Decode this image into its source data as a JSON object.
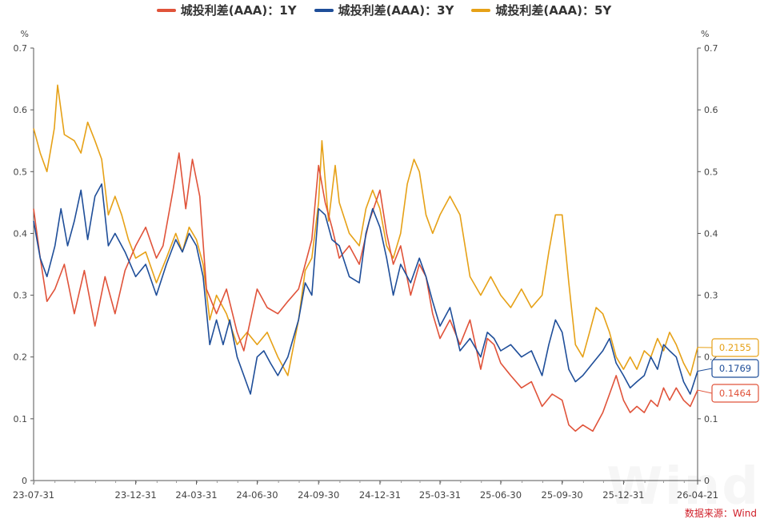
{
  "legend": [
    {
      "name": "城投利差(AAA)：1Y",
      "color": "#e0533a"
    },
    {
      "name": "城投利差(AAA)：3Y",
      "color": "#1f4e99"
    },
    {
      "name": "城投利差(AAA)：5Y",
      "color": "#e6a117"
    }
  ],
  "source": "数据来源：Wind",
  "watermark": "Wind",
  "chart_data": {
    "type": "line",
    "y_unit_left": "%",
    "y_unit_right": "%",
    "ylim": [
      0,
      0.7
    ],
    "yticks": [
      "0",
      "0.1",
      "0.2",
      "0.3",
      "0.4",
      "0.5",
      "0.6",
      "0.7"
    ],
    "x_range": [
      "2023-07-31",
      "2026-04-21"
    ],
    "xticks": [
      "23-07-31",
      "23-12-31",
      "24-03-31",
      "24-06-30",
      "24-09-30",
      "24-12-31",
      "25-03-31",
      "25-06-30",
      "25-09-30",
      "25-12-31",
      "26-04-21"
    ],
    "end_labels": [
      "0.2155",
      "0.1769",
      "0.1464"
    ],
    "series": [
      {
        "name": "城投利差(AAA)：1Y",
        "color": "#e0533a",
        "points": [
          [
            "2023-07-31",
            0.44
          ],
          [
            "2023-08-10",
            0.36
          ],
          [
            "2023-08-20",
            0.29
          ],
          [
            "2023-09-01",
            0.31
          ],
          [
            "2023-09-15",
            0.35
          ],
          [
            "2023-09-30",
            0.27
          ],
          [
            "2023-10-15",
            0.34
          ],
          [
            "2023-10-31",
            0.25
          ],
          [
            "2023-11-15",
            0.33
          ],
          [
            "2023-11-30",
            0.27
          ],
          [
            "2023-12-15",
            0.34
          ],
          [
            "2023-12-31",
            0.38
          ],
          [
            "2024-01-15",
            0.41
          ],
          [
            "2024-01-31",
            0.36
          ],
          [
            "2024-02-10",
            0.38
          ],
          [
            "2024-02-25",
            0.47
          ],
          [
            "2024-03-05",
            0.53
          ],
          [
            "2024-03-15",
            0.44
          ],
          [
            "2024-03-25",
            0.52
          ],
          [
            "2024-04-05",
            0.46
          ],
          [
            "2024-04-15",
            0.31
          ],
          [
            "2024-04-30",
            0.27
          ],
          [
            "2024-05-15",
            0.31
          ],
          [
            "2024-05-31",
            0.24
          ],
          [
            "2024-06-10",
            0.21
          ],
          [
            "2024-06-20",
            0.26
          ],
          [
            "2024-06-30",
            0.31
          ],
          [
            "2024-07-15",
            0.28
          ],
          [
            "2024-07-31",
            0.27
          ],
          [
            "2024-08-15",
            0.29
          ],
          [
            "2024-08-31",
            0.31
          ],
          [
            "2024-09-10",
            0.35
          ],
          [
            "2024-09-20",
            0.39
          ],
          [
            "2024-09-30",
            0.51
          ],
          [
            "2024-10-10",
            0.45
          ],
          [
            "2024-10-20",
            0.41
          ],
          [
            "2024-10-31",
            0.36
          ],
          [
            "2024-11-15",
            0.38
          ],
          [
            "2024-11-30",
            0.35
          ],
          [
            "2024-12-15",
            0.42
          ],
          [
            "2024-12-31",
            0.47
          ],
          [
            "2025-01-10",
            0.4
          ],
          [
            "2025-01-20",
            0.35
          ],
          [
            "2025-01-31",
            0.38
          ],
          [
            "2025-02-15",
            0.3
          ],
          [
            "2025-02-28",
            0.35
          ],
          [
            "2025-03-10",
            0.33
          ],
          [
            "2025-03-20",
            0.27
          ],
          [
            "2025-03-31",
            0.23
          ],
          [
            "2025-04-15",
            0.26
          ],
          [
            "2025-04-30",
            0.22
          ],
          [
            "2025-05-15",
            0.26
          ],
          [
            "2025-05-31",
            0.18
          ],
          [
            "2025-06-10",
            0.23
          ],
          [
            "2025-06-20",
            0.22
          ],
          [
            "2025-06-30",
            0.19
          ],
          [
            "2025-07-15",
            0.17
          ],
          [
            "2025-07-31",
            0.15
          ],
          [
            "2025-08-15",
            0.16
          ],
          [
            "2025-08-31",
            0.12
          ],
          [
            "2025-09-15",
            0.14
          ],
          [
            "2025-09-30",
            0.13
          ],
          [
            "2025-10-10",
            0.09
          ],
          [
            "2025-10-20",
            0.08
          ],
          [
            "2025-10-31",
            0.09
          ],
          [
            "2025-11-15",
            0.08
          ],
          [
            "2025-11-30",
            0.11
          ],
          [
            "2025-12-10",
            0.14
          ],
          [
            "2025-12-20",
            0.17
          ],
          [
            "2025-12-31",
            0.13
          ],
          [
            "2026-01-10",
            0.11
          ],
          [
            "2026-01-20",
            0.12
          ],
          [
            "2026-01-31",
            0.11
          ],
          [
            "2026-02-10",
            0.13
          ],
          [
            "2026-02-20",
            0.12
          ],
          [
            "2026-03-01",
            0.15
          ],
          [
            "2026-03-10",
            0.13
          ],
          [
            "2026-03-20",
            0.15
          ],
          [
            "2026-03-31",
            0.13
          ],
          [
            "2026-04-10",
            0.12
          ],
          [
            "2026-04-21",
            0.1464
          ]
        ]
      },
      {
        "name": "城投利差(AAA)：3Y",
        "color": "#1f4e99",
        "points": [
          [
            "2023-07-31",
            0.42
          ],
          [
            "2023-08-10",
            0.36
          ],
          [
            "2023-08-20",
            0.33
          ],
          [
            "2023-09-01",
            0.38
          ],
          [
            "2023-09-10",
            0.44
          ],
          [
            "2023-09-20",
            0.38
          ],
          [
            "2023-09-30",
            0.42
          ],
          [
            "2023-10-10",
            0.47
          ],
          [
            "2023-10-20",
            0.39
          ],
          [
            "2023-10-31",
            0.46
          ],
          [
            "2023-11-10",
            0.48
          ],
          [
            "2023-11-20",
            0.38
          ],
          [
            "2023-11-30",
            0.4
          ],
          [
            "2023-12-15",
            0.37
          ],
          [
            "2023-12-31",
            0.33
          ],
          [
            "2024-01-15",
            0.35
          ],
          [
            "2024-01-31",
            0.3
          ],
          [
            "2024-02-15",
            0.35
          ],
          [
            "2024-02-29",
            0.39
          ],
          [
            "2024-03-10",
            0.37
          ],
          [
            "2024-03-20",
            0.4
          ],
          [
            "2024-03-31",
            0.38
          ],
          [
            "2024-04-10",
            0.33
          ],
          [
            "2024-04-20",
            0.22
          ],
          [
            "2024-04-30",
            0.26
          ],
          [
            "2024-05-10",
            0.22
          ],
          [
            "2024-05-20",
            0.26
          ],
          [
            "2024-05-31",
            0.2
          ],
          [
            "2024-06-10",
            0.17
          ],
          [
            "2024-06-20",
            0.14
          ],
          [
            "2024-06-30",
            0.2
          ],
          [
            "2024-07-10",
            0.21
          ],
          [
            "2024-07-20",
            0.19
          ],
          [
            "2024-07-31",
            0.17
          ],
          [
            "2024-08-15",
            0.2
          ],
          [
            "2024-08-31",
            0.26
          ],
          [
            "2024-09-10",
            0.32
          ],
          [
            "2024-09-20",
            0.3
          ],
          [
            "2024-09-30",
            0.44
          ],
          [
            "2024-10-10",
            0.43
          ],
          [
            "2024-10-20",
            0.39
          ],
          [
            "2024-10-31",
            0.38
          ],
          [
            "2024-11-15",
            0.33
          ],
          [
            "2024-11-30",
            0.32
          ],
          [
            "2024-12-10",
            0.4
          ],
          [
            "2024-12-20",
            0.44
          ],
          [
            "2024-12-31",
            0.41
          ],
          [
            "2025-01-10",
            0.36
          ],
          [
            "2025-01-20",
            0.3
          ],
          [
            "2025-01-31",
            0.35
          ],
          [
            "2025-02-15",
            0.32
          ],
          [
            "2025-02-28",
            0.36
          ],
          [
            "2025-03-10",
            0.33
          ],
          [
            "2025-03-20",
            0.29
          ],
          [
            "2025-03-31",
            0.25
          ],
          [
            "2025-04-15",
            0.28
          ],
          [
            "2025-04-30",
            0.21
          ],
          [
            "2025-05-15",
            0.23
          ],
          [
            "2025-05-31",
            0.2
          ],
          [
            "2025-06-10",
            0.24
          ],
          [
            "2025-06-20",
            0.23
          ],
          [
            "2025-06-30",
            0.21
          ],
          [
            "2025-07-15",
            0.22
          ],
          [
            "2025-07-31",
            0.2
          ],
          [
            "2025-08-15",
            0.21
          ],
          [
            "2025-08-31",
            0.17
          ],
          [
            "2025-09-10",
            0.22
          ],
          [
            "2025-09-20",
            0.26
          ],
          [
            "2025-09-30",
            0.24
          ],
          [
            "2025-10-10",
            0.18
          ],
          [
            "2025-10-20",
            0.16
          ],
          [
            "2025-10-31",
            0.17
          ],
          [
            "2025-11-15",
            0.19
          ],
          [
            "2025-11-30",
            0.21
          ],
          [
            "2025-12-10",
            0.23
          ],
          [
            "2025-12-20",
            0.19
          ],
          [
            "2025-12-31",
            0.17
          ],
          [
            "2026-01-10",
            0.15
          ],
          [
            "2026-01-20",
            0.16
          ],
          [
            "2026-01-31",
            0.17
          ],
          [
            "2026-02-10",
            0.2
          ],
          [
            "2026-02-20",
            0.18
          ],
          [
            "2026-03-01",
            0.22
          ],
          [
            "2026-03-10",
            0.21
          ],
          [
            "2026-03-20",
            0.2
          ],
          [
            "2026-03-31",
            0.16
          ],
          [
            "2026-04-10",
            0.14
          ],
          [
            "2026-04-21",
            0.1769
          ]
        ]
      },
      {
        "name": "城投利差(AAA)：5Y",
        "color": "#e6a117",
        "points": [
          [
            "2023-07-31",
            0.57
          ],
          [
            "2023-08-10",
            0.53
          ],
          [
            "2023-08-20",
            0.5
          ],
          [
            "2023-08-31",
            0.57
          ],
          [
            "2023-09-05",
            0.64
          ],
          [
            "2023-09-15",
            0.56
          ],
          [
            "2023-09-30",
            0.55
          ],
          [
            "2023-10-10",
            0.53
          ],
          [
            "2023-10-20",
            0.58
          ],
          [
            "2023-10-31",
            0.55
          ],
          [
            "2023-11-10",
            0.52
          ],
          [
            "2023-11-20",
            0.43
          ],
          [
            "2023-11-30",
            0.46
          ],
          [
            "2023-12-10",
            0.43
          ],
          [
            "2023-12-20",
            0.39
          ],
          [
            "2023-12-31",
            0.36
          ],
          [
            "2024-01-15",
            0.37
          ],
          [
            "2024-01-31",
            0.32
          ],
          [
            "2024-02-15",
            0.36
          ],
          [
            "2024-02-29",
            0.4
          ],
          [
            "2024-03-10",
            0.37
          ],
          [
            "2024-03-20",
            0.41
          ],
          [
            "2024-03-31",
            0.39
          ],
          [
            "2024-04-10",
            0.35
          ],
          [
            "2024-04-20",
            0.26
          ],
          [
            "2024-04-30",
            0.3
          ],
          [
            "2024-05-15",
            0.27
          ],
          [
            "2024-05-31",
            0.22
          ],
          [
            "2024-06-15",
            0.24
          ],
          [
            "2024-06-30",
            0.22
          ],
          [
            "2024-07-15",
            0.24
          ],
          [
            "2024-07-31",
            0.2
          ],
          [
            "2024-08-15",
            0.17
          ],
          [
            "2024-08-31",
            0.26
          ],
          [
            "2024-09-10",
            0.34
          ],
          [
            "2024-09-20",
            0.36
          ],
          [
            "2024-09-30",
            0.45
          ],
          [
            "2024-10-05",
            0.55
          ],
          [
            "2024-10-15",
            0.42
          ],
          [
            "2024-10-25",
            0.51
          ],
          [
            "2024-10-31",
            0.45
          ],
          [
            "2024-11-15",
            0.4
          ],
          [
            "2024-11-30",
            0.38
          ],
          [
            "2024-12-10",
            0.44
          ],
          [
            "2024-12-20",
            0.47
          ],
          [
            "2024-12-31",
            0.44
          ],
          [
            "2025-01-10",
            0.38
          ],
          [
            "2025-01-20",
            0.36
          ],
          [
            "2025-01-31",
            0.4
          ],
          [
            "2025-02-10",
            0.48
          ],
          [
            "2025-02-20",
            0.52
          ],
          [
            "2025-02-28",
            0.5
          ],
          [
            "2025-03-10",
            0.43
          ],
          [
            "2025-03-20",
            0.4
          ],
          [
            "2025-03-31",
            0.43
          ],
          [
            "2025-04-15",
            0.46
          ],
          [
            "2025-04-30",
            0.43
          ],
          [
            "2025-05-15",
            0.33
          ],
          [
            "2025-05-31",
            0.3
          ],
          [
            "2025-06-15",
            0.33
          ],
          [
            "2025-06-30",
            0.3
          ],
          [
            "2025-07-15",
            0.28
          ],
          [
            "2025-07-31",
            0.31
          ],
          [
            "2025-08-15",
            0.28
          ],
          [
            "2025-08-31",
            0.3
          ],
          [
            "2025-09-10",
            0.37
          ],
          [
            "2025-09-20",
            0.43
          ],
          [
            "2025-09-30",
            0.43
          ],
          [
            "2025-10-10",
            0.32
          ],
          [
            "2025-10-20",
            0.22
          ],
          [
            "2025-10-31",
            0.2
          ],
          [
            "2025-11-10",
            0.24
          ],
          [
            "2025-11-20",
            0.28
          ],
          [
            "2025-11-30",
            0.27
          ],
          [
            "2025-12-10",
            0.24
          ],
          [
            "2025-12-20",
            0.2
          ],
          [
            "2025-12-31",
            0.18
          ],
          [
            "2026-01-10",
            0.2
          ],
          [
            "2026-01-20",
            0.18
          ],
          [
            "2026-01-31",
            0.21
          ],
          [
            "2026-02-10",
            0.2
          ],
          [
            "2026-02-20",
            0.23
          ],
          [
            "2026-03-01",
            0.21
          ],
          [
            "2026-03-10",
            0.24
          ],
          [
            "2026-03-20",
            0.22
          ],
          [
            "2026-03-31",
            0.19
          ],
          [
            "2026-04-10",
            0.17
          ],
          [
            "2026-04-21",
            0.2155
          ]
        ]
      }
    ]
  }
}
